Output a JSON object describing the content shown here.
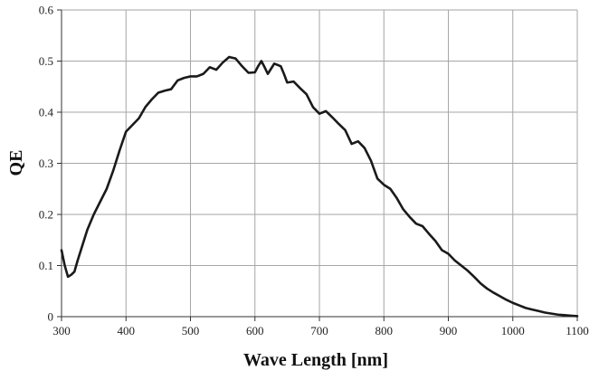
{
  "chart_data": {
    "type": "line",
    "title": "",
    "xlabel": "Wave Length [nm]",
    "ylabel": "QE",
    "xlim": [
      300,
      1100
    ],
    "ylim": [
      0,
      0.6
    ],
    "x_ticks": [
      300,
      400,
      500,
      600,
      700,
      800,
      900,
      1000,
      1100
    ],
    "y_ticks": [
      0,
      0.1,
      0.2,
      0.3,
      0.4,
      0.5,
      0.6
    ],
    "x_tick_labels": [
      "300",
      "400",
      "500",
      "600",
      "700",
      "800",
      "900",
      "1000",
      "1100"
    ],
    "y_tick_labels": [
      "0",
      "0.1",
      "0.2",
      "0.3",
      "0.4",
      "0.5",
      "0.6"
    ],
    "grid": true,
    "legend": "none",
    "series": [
      {
        "color": "#1a1a1a",
        "x": [
          300,
          305,
          310,
          315,
          320,
          325,
          330,
          340,
          350,
          360,
          370,
          380,
          390,
          400,
          410,
          420,
          430,
          440,
          450,
          460,
          470,
          480,
          490,
          500,
          510,
          520,
          530,
          540,
          550,
          560,
          570,
          580,
          590,
          600,
          605,
          610,
          615,
          620,
          630,
          640,
          645,
          650,
          660,
          670,
          680,
          690,
          700,
          710,
          720,
          730,
          740,
          750,
          760,
          770,
          780,
          790,
          800,
          810,
          820,
          830,
          840,
          850,
          860,
          870,
          880,
          890,
          900,
          910,
          920,
          930,
          940,
          950,
          960,
          970,
          980,
          990,
          1000,
          1010,
          1020,
          1030,
          1040,
          1050,
          1060,
          1070,
          1080,
          1090,
          1100
        ],
        "y": [
          0.13,
          0.1,
          0.078,
          0.082,
          0.088,
          0.11,
          0.13,
          0.17,
          0.2,
          0.225,
          0.25,
          0.285,
          0.325,
          0.362,
          0.375,
          0.388,
          0.41,
          0.425,
          0.438,
          0.442,
          0.445,
          0.462,
          0.467,
          0.47,
          0.47,
          0.475,
          0.488,
          0.483,
          0.497,
          0.508,
          0.505,
          0.49,
          0.477,
          0.478,
          0.49,
          0.5,
          0.488,
          0.475,
          0.495,
          0.49,
          0.475,
          0.458,
          0.46,
          0.447,
          0.435,
          0.41,
          0.397,
          0.402,
          0.39,
          0.377,
          0.365,
          0.338,
          0.343,
          0.33,
          0.305,
          0.27,
          0.258,
          0.25,
          0.232,
          0.21,
          0.195,
          0.182,
          0.177,
          0.162,
          0.148,
          0.13,
          0.123,
          0.11,
          0.1,
          0.09,
          0.078,
          0.065,
          0.055,
          0.047,
          0.04,
          0.033,
          0.027,
          0.022,
          0.017,
          0.014,
          0.011,
          0.008,
          0.006,
          0.004,
          0.003,
          0.002,
          0.001
        ]
      }
    ]
  }
}
